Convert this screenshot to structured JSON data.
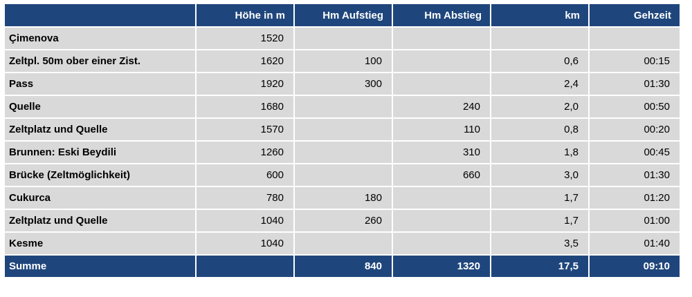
{
  "headers": [
    "",
    "Höhe in m",
    "Hm Aufstieg",
    "Hm Abstieg",
    "km",
    "Gehzeit"
  ],
  "rows": [
    {
      "name": "Çimenova",
      "hoehe": "1520",
      "aufstieg": "",
      "abstieg": "",
      "km": "",
      "gehzeit": ""
    },
    {
      "name": "Zeltpl.  50m ober einer Zist.",
      "hoehe": "1620",
      "aufstieg": "100",
      "abstieg": "",
      "km": "0,6",
      "gehzeit": "00:15"
    },
    {
      "name": "Pass",
      "hoehe": "1920",
      "aufstieg": "300",
      "abstieg": "",
      "km": "2,4",
      "gehzeit": "01:30"
    },
    {
      "name": "Quelle",
      "hoehe": "1680",
      "aufstieg": "",
      "abstieg": "240",
      "km": "2,0",
      "gehzeit": "00:50"
    },
    {
      "name": "Zeltplatz und Quelle",
      "hoehe": "1570",
      "aufstieg": "",
      "abstieg": "110",
      "km": "0,8",
      "gehzeit": "00:20"
    },
    {
      "name": "Brunnen: Eski Beydili",
      "hoehe": "1260",
      "aufstieg": "",
      "abstieg": "310",
      "km": "1,8",
      "gehzeit": "00:45"
    },
    {
      "name": "Brücke (Zeltmöglichkeit)",
      "hoehe": "600",
      "aufstieg": "",
      "abstieg": "660",
      "km": "3,0",
      "gehzeit": "01:30"
    },
    {
      "name": "Cukurca",
      "hoehe": "780",
      "aufstieg": "180",
      "abstieg": "",
      "km": "1,7",
      "gehzeit": "01:20"
    },
    {
      "name": "Zeltplatz und Quelle",
      "hoehe": "1040",
      "aufstieg": "260",
      "abstieg": "",
      "km": "1,7",
      "gehzeit": "01:00"
    },
    {
      "name": "Kesme",
      "hoehe": "1040",
      "aufstieg": "",
      "abstieg": "",
      "km": "3,5",
      "gehzeit": "01:40"
    }
  ],
  "summary": {
    "name": "Summe",
    "hoehe": "",
    "aufstieg": "840",
    "abstieg": "1320",
    "km": "17,5",
    "gehzeit": "09:10"
  }
}
